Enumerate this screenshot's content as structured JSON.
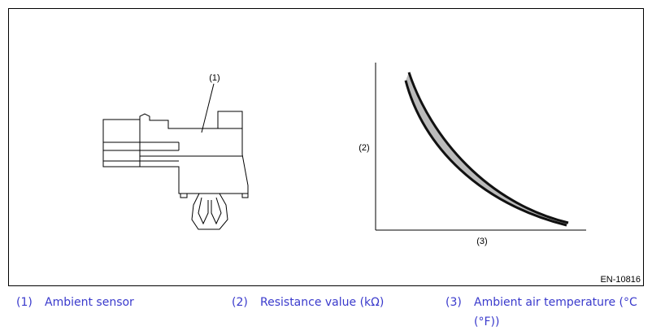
{
  "figure": {
    "labels": [
      "(1)",
      "(2)",
      "(3)"
    ],
    "code": "EN-10816"
  },
  "legend": [
    {
      "number": "(1)",
      "text": "Ambient sensor"
    },
    {
      "number": "(2)",
      "text": "Resistance value (kΩ)"
    },
    {
      "number": "(3)",
      "text": "Ambient air temperature (°C (°F))"
    }
  ]
}
